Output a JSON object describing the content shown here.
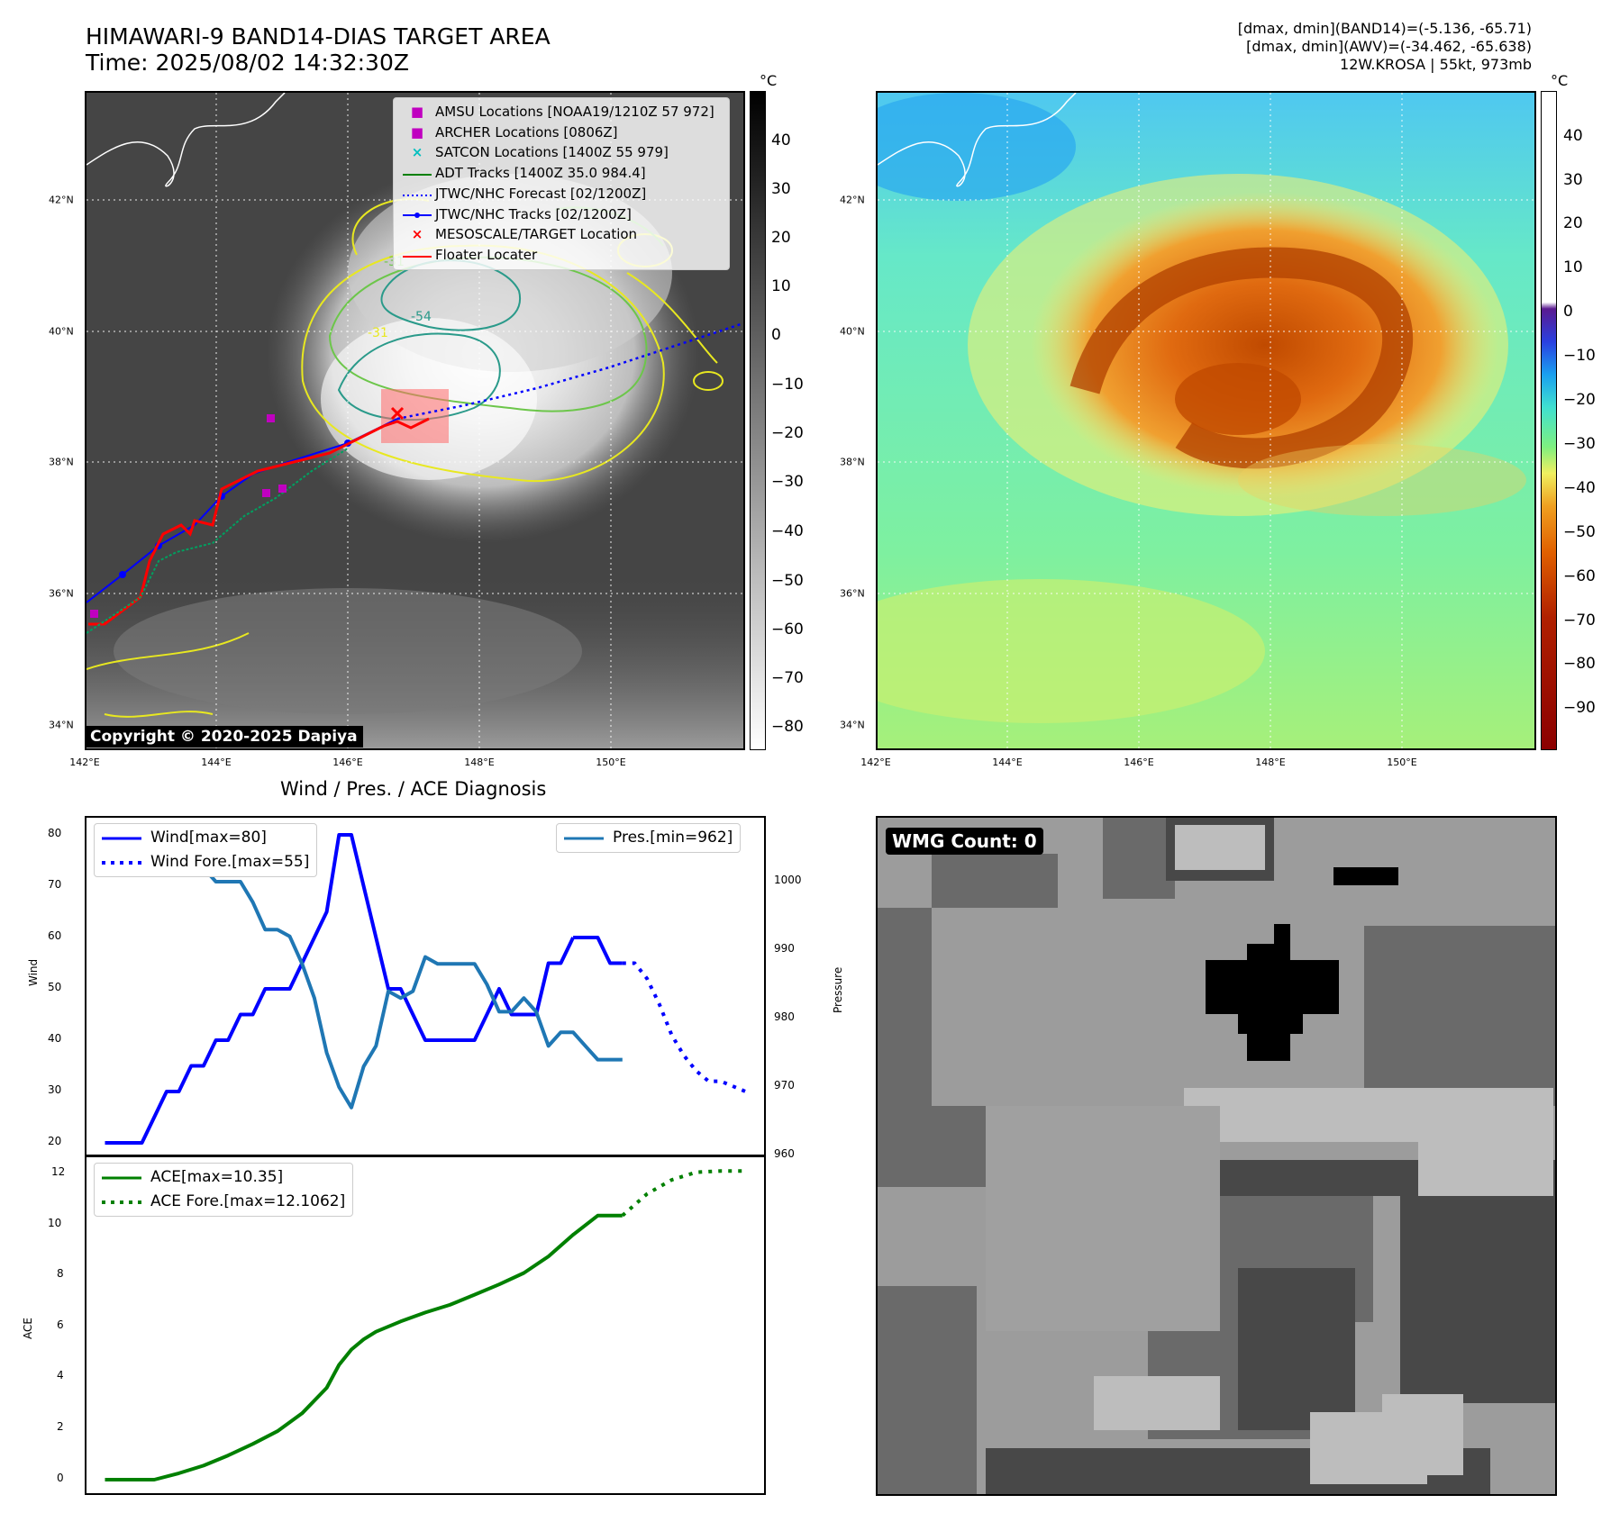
{
  "header": {
    "title_line1": "HIMAWARI-9 BAND14-DIAS TARGET AREA",
    "title_line2": "Time: 2025/08/02 14:32:30Z",
    "stats_line1": "[dmax, dmin](BAND14)=(-5.136, -65.71)",
    "stats_line2": "[dmax, dmin](AWV)=(-34.462, -65.638)",
    "stats_line3": "12W.KROSA | 55kt, 973mb"
  },
  "map": {
    "lat_labels": [
      "42°N",
      "40°N",
      "38°N",
      "36°N",
      "34°N"
    ],
    "lon_labels": [
      "142°E",
      "144°E",
      "146°E",
      "148°E",
      "150°E"
    ],
    "copyright": "Copyright © 2020-2025 Dapiya",
    "contour_labels": [
      "-31",
      "-54",
      "-31"
    ],
    "legend": [
      {
        "label": "AMSU Locations [NOAA19/1210Z 57 972]",
        "symbol": "■",
        "color": "#c000c0"
      },
      {
        "label": "ARCHER Locations [0806Z]",
        "symbol": "■",
        "color": "#c000c0"
      },
      {
        "label": "SATCON Locations [1400Z 55 979]",
        "symbol": "×",
        "color": "#00bfbf"
      },
      {
        "label": "ADT Tracks [1400Z 35.0 984.4]",
        "symbol": "line",
        "color": "#008000"
      },
      {
        "label": "JTWC/NHC Forecast [02/1200Z]",
        "symbol": "dotted",
        "color": "#0000ff"
      },
      {
        "label": "JTWC/NHC Tracks [02/1200Z]",
        "symbol": "dotline",
        "color": "#0000ff"
      },
      {
        "label": "MESOSCALE/TARGET Location",
        "symbol": "×",
        "color": "#ff0000"
      },
      {
        "label": "Floater Locater",
        "symbol": "line",
        "color": "#ff0000"
      }
    ]
  },
  "colorbar_gray": {
    "unit": "°C",
    "ticks": [
      "40",
      "30",
      "20",
      "10",
      "0",
      "−10",
      "−20",
      "−30",
      "−40",
      "−50",
      "−60",
      "−70",
      "−80"
    ]
  },
  "colorbar_awv": {
    "unit": "°C",
    "ticks": [
      "40",
      "30",
      "20",
      "10",
      "0",
      "−10",
      "−20",
      "−30",
      "−40",
      "−50",
      "−60",
      "−70",
      "−80",
      "−90"
    ]
  },
  "diag": {
    "title": "Wind / Pres. / ACE Diagnosis",
    "wind_ylabel": "Wind",
    "pres_ylabel": "Pressure",
    "ace_ylabel": "ACE",
    "wind_ticks": [
      "80",
      "70",
      "60",
      "50",
      "40",
      "30",
      "20"
    ],
    "pres_ticks": [
      "1000",
      "990",
      "980",
      "970",
      "960"
    ],
    "ace_ticks": [
      "12",
      "10",
      "8",
      "6",
      "4",
      "2",
      "0"
    ],
    "legend_wind": "Wind[max=80]",
    "legend_wind_fore": "Wind Fore.[max=55]",
    "legend_pres": "Pres.[min=962]",
    "legend_ace": "ACE[max=10.35]",
    "legend_ace_fore": "ACE Fore.[max=12.1062]"
  },
  "wmg": {
    "label": "WMG Count: 0"
  },
  "chart_data": [
    {
      "type": "line",
      "title": "Wind / Pres. / ACE Diagnosis",
      "ylabel": "Wind",
      "ylim": [
        18,
        83
      ],
      "series": [
        {
          "name": "Wind[max=80]",
          "color": "#0000ff",
          "style": "solid",
          "x": [
            0,
            1,
            2,
            3,
            4,
            5,
            6,
            7,
            8,
            9,
            10,
            11,
            12,
            13,
            14,
            15,
            16,
            17,
            18,
            19,
            20,
            21,
            22,
            23,
            24,
            25,
            26,
            27,
            28,
            29,
            30,
            31,
            32,
            33,
            34,
            35,
            36,
            37,
            38
          ],
          "values": [
            20,
            20,
            20,
            20,
            25,
            30,
            30,
            35,
            35,
            40,
            40,
            45,
            45,
            50,
            50,
            50,
            55,
            60,
            65,
            80,
            80,
            70,
            60,
            50,
            50,
            45,
            40,
            40,
            40,
            40,
            40,
            45,
            50,
            45,
            45,
            45,
            55,
            55,
            60
          ]
        },
        {
          "name": "Wind[max=80]",
          "color": "#0000ff",
          "style": "solid",
          "x": [
            38,
            39,
            40,
            41,
            42
          ],
          "values": [
            60,
            60,
            60,
            55,
            55
          ]
        },
        {
          "name": "Wind Fore.[max=55]",
          "color": "#0000ff",
          "style": "dotted",
          "x": [
            42,
            43,
            44,
            45,
            46,
            47,
            48,
            49,
            50,
            51,
            52
          ],
          "values": [
            55,
            55,
            52,
            47,
            41,
            37,
            34,
            32,
            32,
            31,
            30
          ]
        }
      ]
    },
    {
      "type": "line",
      "ylabel": "Pressure",
      "ylim": [
        960,
        1009
      ],
      "series": [
        {
          "name": "Pres.[min=962]",
          "color": "#1f77b4",
          "style": "solid",
          "x": [
            0,
            1,
            2,
            3,
            4,
            5,
            6,
            7,
            8,
            9,
            10,
            11,
            12,
            13,
            14,
            15,
            16,
            17,
            18,
            19,
            20,
            21,
            22,
            23,
            24,
            25,
            26,
            27,
            28,
            29,
            30,
            31,
            32,
            33,
            34,
            35,
            36,
            37,
            38,
            39,
            40,
            41,
            42
          ],
          "values": [
            1008,
            1008,
            1008,
            1006,
            1006,
            1005,
            1005,
            1002,
            1002,
            1000,
            1000,
            1000,
            997,
            993,
            993,
            992,
            988,
            983,
            975,
            970,
            967,
            973,
            976,
            984,
            983,
            984,
            989,
            988,
            988,
            988,
            988,
            985,
            981,
            981,
            983,
            981,
            976,
            978,
            978,
            976,
            974,
            974,
            974
          ]
        }
      ]
    },
    {
      "type": "line",
      "ylabel": "ACE",
      "ylim": [
        -0.5,
        12.5
      ],
      "series": [
        {
          "name": "ACE[max=10.35]",
          "color": "#008000",
          "style": "solid",
          "x": [
            0,
            2,
            4,
            6,
            8,
            10,
            12,
            14,
            16,
            18,
            19,
            20,
            21,
            22,
            24,
            26,
            28,
            30,
            32,
            34,
            36,
            38,
            40,
            42
          ],
          "values": [
            0,
            0,
            0,
            0.25,
            0.55,
            0.95,
            1.4,
            1.9,
            2.6,
            3.6,
            4.5,
            5.1,
            5.5,
            5.8,
            6.2,
            6.55,
            6.85,
            7.25,
            7.65,
            8.1,
            8.75,
            9.6,
            10.35,
            10.35
          ]
        },
        {
          "name": "ACE Fore.[max=12.1062]",
          "color": "#008000",
          "style": "dotted",
          "x": [
            42,
            44,
            46,
            48,
            50,
            52
          ],
          "values": [
            10.35,
            11.2,
            11.75,
            12.05,
            12.1,
            12.1
          ]
        }
      ]
    }
  ]
}
